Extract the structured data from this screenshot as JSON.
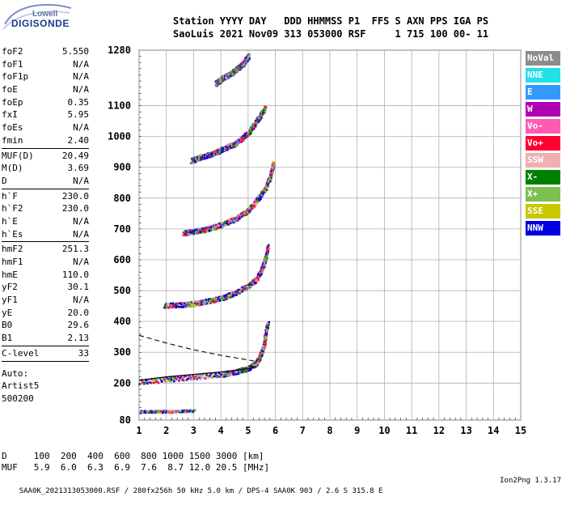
{
  "logo": {
    "line1": "Lowell",
    "line2": "DIGISONDE"
  },
  "header": {
    "row1": "Station YYYY DAY   DDD HHMMSS P1  FFS S AXN PPS IGA PS",
    "row2": "SaoLuis 2021 Nov09 313 053000 RSF     1 715 100 00- 11"
  },
  "params": {
    "group1": [
      {
        "name": "foF2",
        "value": "5.550"
      },
      {
        "name": "foF1",
        "value": "N/A"
      },
      {
        "name": "foF1p",
        "value": "N/A"
      },
      {
        "name": "foE",
        "value": "N/A"
      },
      {
        "name": "foEp",
        "value": "0.35"
      },
      {
        "name": "fxI",
        "value": "5.95"
      },
      {
        "name": "foEs",
        "value": "N/A"
      },
      {
        "name": "fmin",
        "value": "2.40"
      }
    ],
    "group2": [
      {
        "name": "MUF(D)",
        "value": "20.49"
      },
      {
        "name": "M(D)",
        "value": "3.69"
      },
      {
        "name": "D",
        "value": "N/A"
      }
    ],
    "group3": [
      {
        "name": "h`F",
        "value": "230.0"
      },
      {
        "name": "h`F2",
        "value": "230.0"
      },
      {
        "name": "h`E",
        "value": "N/A"
      },
      {
        "name": "h`Es",
        "value": "N/A"
      }
    ],
    "group4": [
      {
        "name": "hmF2",
        "value": "251.3"
      },
      {
        "name": "hmF1",
        "value": "N/A"
      },
      {
        "name": "hmE",
        "value": "110.0"
      },
      {
        "name": "yF2",
        "value": "30.1"
      },
      {
        "name": "yF1",
        "value": "N/A"
      },
      {
        "name": "yE",
        "value": "20.0"
      },
      {
        "name": "B0",
        "value": "29.6"
      },
      {
        "name": "B1",
        "value": "2.13"
      }
    ],
    "group5": [
      {
        "name": "C-level",
        "value": "33"
      }
    ],
    "auto": [
      "Auto:",
      "Artist5",
      "500200"
    ]
  },
  "legend": [
    {
      "label": "NoVal",
      "color": "#8c8c8c"
    },
    {
      "label": "NNE",
      "color": "#22e0e8"
    },
    {
      "label": "E",
      "color": "#3399ff"
    },
    {
      "label": "W",
      "color": "#b000b0"
    },
    {
      "label": "Vo-",
      "color": "#ff5ab4"
    },
    {
      "label": "Vo+",
      "color": "#ff0030"
    },
    {
      "label": "SSW",
      "color": "#f0b0b0"
    },
    {
      "label": "X-",
      "color": "#008000"
    },
    {
      "label": "X+",
      "color": "#7cc050"
    },
    {
      "label": "SSE",
      "color": "#c8c800"
    },
    {
      "label": "NNW",
      "color": "#0000e0"
    }
  ],
  "footer": {
    "row1": "D     100  200  400  600  800 1000 1500 3000 [km]",
    "row2": "MUF   5.9  6.0  6.3  6.9  7.6  8.7 12.0 20.5 [MHz]",
    "info": "SAA0K_2021313053000.RSF / 280fx256h 50 kHz 5.0 km / DPS-4 SAA0K 903 / 2.6 S 315.8 E",
    "version": "Ion2Png 1.3.17"
  },
  "chart_data": {
    "type": "scatter",
    "xlim": [
      1,
      15
    ],
    "ylim": [
      80,
      1280
    ],
    "x_ticks": [
      "1",
      "2",
      "3",
      "4",
      "5",
      "6",
      "7",
      "8",
      "9",
      "10",
      "11",
      "12",
      "13",
      "14",
      "15"
    ],
    "y_ticks": [
      "80",
      "200",
      "300",
      "400",
      "500",
      "600",
      "700",
      "800",
      "900",
      "1000",
      "1100",
      "1280"
    ],
    "grid": true,
    "ionogram_traces": [
      {
        "name": "F2 1st hop",
        "points": [
          [
            1.0,
            212
          ],
          [
            2.0,
            220
          ],
          [
            3.0,
            228
          ],
          [
            4.0,
            236
          ],
          [
            4.5,
            244
          ],
          [
            5.0,
            256
          ],
          [
            5.3,
            275
          ],
          [
            5.45,
            300
          ],
          [
            5.55,
            330
          ],
          [
            5.6,
            360
          ],
          [
            5.7,
            400
          ]
        ]
      },
      {
        "name": "F2 2nd hop",
        "points": [
          [
            1.9,
            460
          ],
          [
            2.5,
            462
          ],
          [
            3.0,
            466
          ],
          [
            3.5,
            474
          ],
          [
            4.0,
            484
          ],
          [
            4.5,
            500
          ],
          [
            5.0,
            524
          ],
          [
            5.3,
            548
          ],
          [
            5.5,
            580
          ],
          [
            5.6,
            610
          ],
          [
            5.7,
            650
          ]
        ]
      },
      {
        "name": "F2 3rd hop",
        "points": [
          [
            2.6,
            695
          ],
          [
            3.0,
            700
          ],
          [
            3.5,
            708
          ],
          [
            4.0,
            722
          ],
          [
            4.5,
            740
          ],
          [
            5.0,
            770
          ],
          [
            5.3,
            800
          ],
          [
            5.6,
            840
          ],
          [
            5.8,
            880
          ],
          [
            5.9,
            920
          ]
        ]
      },
      {
        "name": "F2 4th hop",
        "points": [
          [
            2.9,
            930
          ],
          [
            3.2,
            940
          ],
          [
            3.6,
            950
          ],
          [
            4.0,
            965
          ],
          [
            4.5,
            985
          ],
          [
            5.0,
            1020
          ],
          [
            5.3,
            1060
          ],
          [
            5.6,
            1100
          ]
        ]
      },
      {
        "name": "F2 5th hop",
        "points": [
          [
            3.8,
            1180
          ],
          [
            4.0,
            1195
          ],
          [
            4.4,
            1215
          ],
          [
            4.8,
            1245
          ],
          [
            5.0,
            1270
          ]
        ]
      },
      {
        "name": "E layer",
        "points": [
          [
            1.0,
            110
          ],
          [
            1.5,
            110
          ],
          [
            2.0,
            110
          ],
          [
            2.5,
            111
          ],
          [
            3.0,
            113
          ]
        ]
      }
    ],
    "profile_line": {
      "points": [
        [
          1.0,
          209
        ],
        [
          2.0,
          220
        ],
        [
          3.0,
          228
        ],
        [
          4.0,
          236
        ],
        [
          4.8,
          244
        ],
        [
          5.25,
          252
        ],
        [
          5.0,
          256
        ]
      ]
    },
    "dashed_line": {
      "points": [
        [
          1.0,
          355
        ],
        [
          2.0,
          330
        ],
        [
          3.0,
          308
        ],
        [
          4.0,
          290
        ],
        [
          5.0,
          275
        ],
        [
          5.3,
          270
        ]
      ]
    }
  }
}
